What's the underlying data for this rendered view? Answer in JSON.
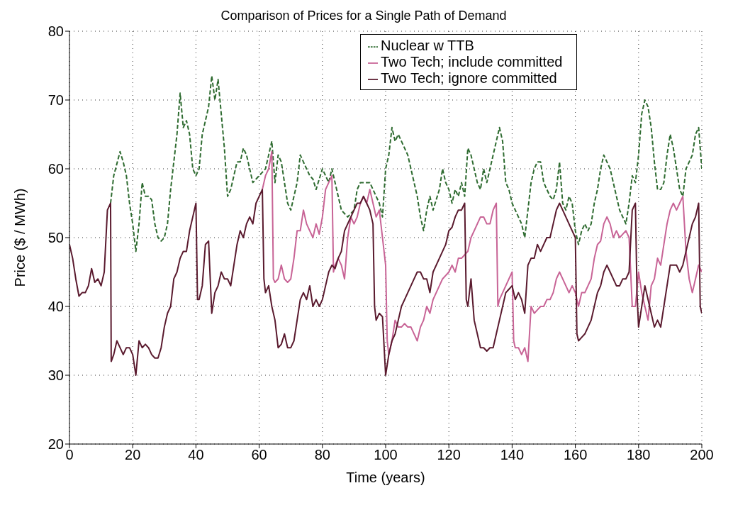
{
  "chart_data": {
    "type": "line",
    "title": "Comparison of Prices for a Single Path of Demand",
    "xlabel": "Time (years)",
    "ylabel": "Price ($ / MWh)",
    "xlim": [
      0,
      200
    ],
    "xticks": [
      0,
      20,
      40,
      60,
      80,
      100,
      120,
      140,
      160,
      180,
      200
    ],
    "ylim": [
      20,
      80
    ],
    "yticks": [
      20,
      30,
      40,
      50,
      60,
      70,
      80
    ],
    "grid": true,
    "legend": "top right",
    "marker": "none",
    "series": [
      {
        "name": "Nuclear w TTB",
        "color": "#2e6b30",
        "line_style": "dashed",
        "x": [
          13,
          14,
          16,
          17,
          18,
          19,
          20,
          21,
          22,
          23,
          24,
          25,
          26,
          27,
          28,
          29,
          30,
          31,
          32,
          33,
          34,
          35,
          36,
          37,
          38,
          39,
          40,
          41,
          42,
          43,
          44,
          45,
          46,
          47,
          48,
          49,
          50,
          51,
          52,
          53,
          54,
          55,
          56,
          57,
          58,
          59,
          60,
          62,
          63,
          64,
          65,
          66,
          67,
          68,
          69,
          70,
          72,
          73,
          74,
          76,
          77,
          78,
          80,
          82,
          83,
          85,
          86,
          88,
          90,
          91,
          92,
          93,
          95,
          96,
          97,
          98,
          99,
          100,
          101,
          102,
          103,
          104,
          105,
          106,
          107,
          108,
          109,
          110,
          111,
          112,
          113,
          114,
          115,
          116,
          117,
          118,
          119,
          120,
          121,
          122,
          123,
          124,
          125,
          126,
          127,
          128,
          129,
          130,
          131,
          132,
          133,
          134,
          135,
          136,
          137,
          138,
          139,
          140,
          141,
          142,
          143,
          144,
          145,
          146,
          147,
          148,
          149,
          150,
          151,
          152,
          153,
          154,
          155,
          156,
          157,
          158,
          159,
          160,
          161,
          162,
          163,
          164,
          165,
          166,
          167,
          168,
          169,
          170,
          171,
          172,
          173,
          174,
          175,
          176,
          177,
          178,
          179,
          180,
          181,
          182,
          183,
          184,
          185,
          186,
          187,
          188,
          189,
          190,
          191,
          192,
          193,
          194,
          195,
          196,
          197,
          198,
          199,
          200
        ],
        "values": [
          55,
          59,
          62.5,
          61,
          59,
          55,
          52,
          48,
          52,
          58,
          56,
          56,
          55.5,
          52,
          50,
          49.5,
          50,
          52,
          57,
          61,
          65,
          71,
          66,
          67,
          65,
          60,
          59,
          60,
          65,
          67,
          69,
          73.5,
          70,
          73,
          68,
          63,
          56,
          57,
          59,
          61,
          61,
          63,
          62,
          60,
          58,
          58.5,
          59,
          60,
          62,
          64,
          58,
          62,
          61,
          58,
          55,
          54,
          58,
          62,
          61,
          59,
          58.5,
          57,
          60,
          58,
          60,
          56,
          54,
          53,
          54,
          57,
          58,
          58,
          58,
          57,
          56,
          55,
          53,
          60,
          62,
          66,
          64,
          65,
          64,
          63,
          62,
          60,
          58,
          56,
          53,
          51,
          54,
          56,
          54,
          55.5,
          57,
          60,
          58,
          57,
          55,
          57,
          56,
          58,
          56,
          63,
          62,
          60,
          58,
          57,
          60,
          58,
          60,
          62,
          64,
          66,
          64,
          58,
          57,
          55,
          54,
          53,
          52,
          50,
          54,
          58,
          60,
          61,
          61,
          58,
          57,
          56,
          55.5,
          57,
          61,
          55,
          54,
          56,
          55,
          51,
          49,
          51,
          52,
          51,
          52,
          55,
          57,
          60,
          62,
          61,
          60,
          58,
          56,
          54,
          53,
          52,
          55,
          59,
          58,
          62,
          68,
          70,
          69,
          66,
          61,
          57,
          57,
          58,
          62,
          65,
          63,
          60,
          57,
          56,
          60,
          61,
          62,
          65,
          66,
          60
        ]
      },
      {
        "name": "Two Tech; include committed",
        "color": "#c86496",
        "line_style": "solid",
        "x": [
          61,
          62,
          63,
          64,
          64.5,
          65,
          66,
          67,
          68,
          69,
          70,
          71,
          72,
          73,
          74,
          75,
          76,
          77,
          78,
          79,
          80,
          81,
          82,
          83,
          83.5,
          84,
          85,
          86,
          87,
          88,
          89,
          90,
          91,
          92,
          93,
          94,
          95,
          96,
          97,
          98,
          99,
          100,
          100.5,
          101,
          102,
          103,
          104,
          105,
          106,
          107,
          108,
          109,
          110,
          111,
          112,
          113,
          114,
          115,
          116,
          117,
          118,
          119,
          120,
          121,
          122,
          123,
          124,
          125,
          126,
          127,
          128,
          129,
          130,
          131,
          132,
          133,
          134,
          135,
          135.5,
          136,
          137,
          138,
          139,
          140,
          140.5,
          141,
          142,
          143,
          144,
          145,
          146,
          147,
          148,
          149,
          150,
          151,
          152,
          153,
          154,
          155,
          156,
          157,
          158,
          159,
          160,
          161,
          162,
          163,
          164,
          165,
          166,
          167,
          168,
          169,
          170,
          171,
          172,
          173,
          174,
          175,
          176,
          177,
          178,
          179,
          180,
          181,
          182,
          183,
          184,
          185,
          186,
          187,
          188,
          189,
          190,
          191,
          192,
          193,
          194,
          195,
          196,
          197,
          198,
          199,
          200
        ],
        "values": [
          57,
          59,
          60,
          62.5,
          44,
          43.5,
          44,
          46,
          44,
          43.5,
          44,
          47,
          51,
          51,
          54,
          52,
          51,
          50,
          52,
          50.5,
          53,
          57,
          58,
          59,
          45,
          46,
          47,
          46,
          44,
          50,
          53,
          52,
          53,
          55,
          56,
          55,
          57,
          55,
          53,
          54,
          50,
          46,
          35,
          33,
          35,
          38,
          37,
          37,
          37.5,
          37,
          37,
          36,
          35,
          37,
          38,
          40,
          39,
          41,
          42,
          43,
          44,
          44.5,
          45,
          46,
          45,
          47,
          47,
          47.5,
          48,
          50,
          51,
          52,
          53,
          53,
          52,
          52,
          54,
          55,
          40,
          41,
          42,
          43,
          44,
          45,
          35,
          34,
          34,
          33,
          34,
          32,
          40,
          39,
          39.5,
          40,
          40,
          41,
          41,
          42,
          44,
          45,
          44,
          43,
          42,
          43,
          42,
          40,
          42,
          42,
          43,
          44,
          47,
          49,
          49.5,
          52,
          53,
          52,
          50,
          51,
          50,
          50.5,
          51,
          50,
          40,
          40,
          45,
          42,
          40,
          38,
          43,
          44,
          47,
          46,
          49,
          52,
          54,
          55,
          54,
          55,
          56,
          48,
          44,
          42,
          44,
          46,
          45
        ]
      },
      {
        "name": "Two Tech; ignore committed",
        "color": "#5a1a2e",
        "line_style": "solid",
        "x": [
          0,
          1,
          2,
          3,
          4,
          5,
          6,
          7,
          8,
          9,
          10,
          11,
          12,
          13,
          13.2,
          14,
          15,
          16,
          17,
          18,
          19,
          20,
          21,
          22,
          23,
          24,
          25,
          26,
          27,
          28,
          29,
          30,
          31,
          32,
          33,
          34,
          35,
          36,
          37,
          38,
          39,
          40,
          40.5,
          41,
          42,
          43,
          44,
          45,
          46,
          47,
          48,
          49,
          50,
          51,
          52,
          53,
          54,
          55,
          56,
          57,
          58,
          59,
          60,
          61,
          61.5,
          62,
          63,
          64,
          65,
          66,
          67,
          68,
          69,
          70,
          71,
          72,
          73,
          74,
          75,
          76,
          77,
          78,
          79,
          80,
          81,
          82,
          83,
          84,
          85,
          86,
          87,
          88,
          89,
          90,
          91,
          92,
          93,
          94,
          95,
          96,
          96.5,
          97,
          98,
          99,
          100,
          101,
          102,
          103,
          104,
          105,
          106,
          107,
          108,
          109,
          110,
          111,
          112,
          113,
          114,
          115,
          116,
          117,
          118,
          119,
          120,
          121,
          122,
          123,
          124,
          125,
          125.5,
          126,
          127,
          128,
          129,
          130,
          131,
          132,
          133,
          134,
          135,
          136,
          137,
          138,
          139,
          140,
          141,
          142,
          143,
          144,
          145,
          146,
          147,
          148,
          149,
          150,
          151,
          152,
          153,
          154,
          155,
          156,
          157,
          158,
          159,
          160,
          160.5,
          161,
          162,
          163,
          164,
          165,
          166,
          167,
          168,
          169,
          170,
          171,
          172,
          173,
          174,
          175,
          176,
          177,
          178,
          179,
          179.5,
          180,
          181,
          182,
          183,
          184,
          185,
          186,
          187,
          188,
          189,
          190,
          191,
          192,
          193,
          194,
          195,
          196,
          197,
          198,
          199,
          199.5,
          200
        ],
        "values": [
          49,
          47,
          44,
          41.5,
          42,
          42,
          43,
          45.5,
          43.5,
          44,
          43,
          45,
          54,
          55,
          32,
          33,
          35,
          34,
          33,
          34,
          34,
          33,
          30,
          35,
          34,
          34.5,
          34,
          33,
          32.5,
          32.5,
          34,
          37,
          39,
          40,
          44,
          45,
          47,
          48,
          48,
          51,
          53,
          55,
          41,
          41,
          43,
          49,
          49.5,
          39,
          42,
          43,
          45,
          44,
          44,
          43,
          46,
          49,
          51,
          50,
          52,
          53,
          52,
          55,
          56,
          57,
          44,
          42,
          43,
          40,
          38,
          34,
          34.5,
          36,
          34,
          34,
          35,
          38,
          41,
          42,
          41,
          43,
          40,
          41,
          40,
          41,
          43,
          45,
          46,
          45.5,
          47,
          48,
          51,
          52,
          53,
          54,
          55,
          55,
          56,
          55,
          54,
          52,
          40,
          38,
          39,
          38.5,
          30,
          33,
          35,
          36,
          38,
          40,
          41,
          42,
          43,
          44,
          45,
          45,
          44,
          44,
          42,
          45,
          46,
          47,
          48,
          49,
          51,
          51.5,
          53,
          54,
          54,
          55,
          41,
          40,
          44,
          38,
          36,
          34,
          34,
          33.5,
          34,
          34,
          36,
          38,
          40,
          42,
          42.5,
          43,
          41,
          42,
          41,
          39,
          46,
          47,
          47,
          49,
          48,
          49,
          50,
          50,
          52,
          54,
          55,
          54,
          53,
          52,
          51,
          50,
          36,
          35,
          35.5,
          36,
          37,
          38,
          40,
          42,
          43,
          45,
          46,
          45,
          44,
          43,
          43,
          44,
          44,
          45,
          54,
          55,
          42,
          37,
          40,
          43,
          41,
          39,
          37,
          38,
          37,
          40,
          43,
          46,
          46,
          46,
          45,
          46,
          48,
          50,
          52,
          53,
          55,
          40,
          39
        ]
      }
    ]
  }
}
